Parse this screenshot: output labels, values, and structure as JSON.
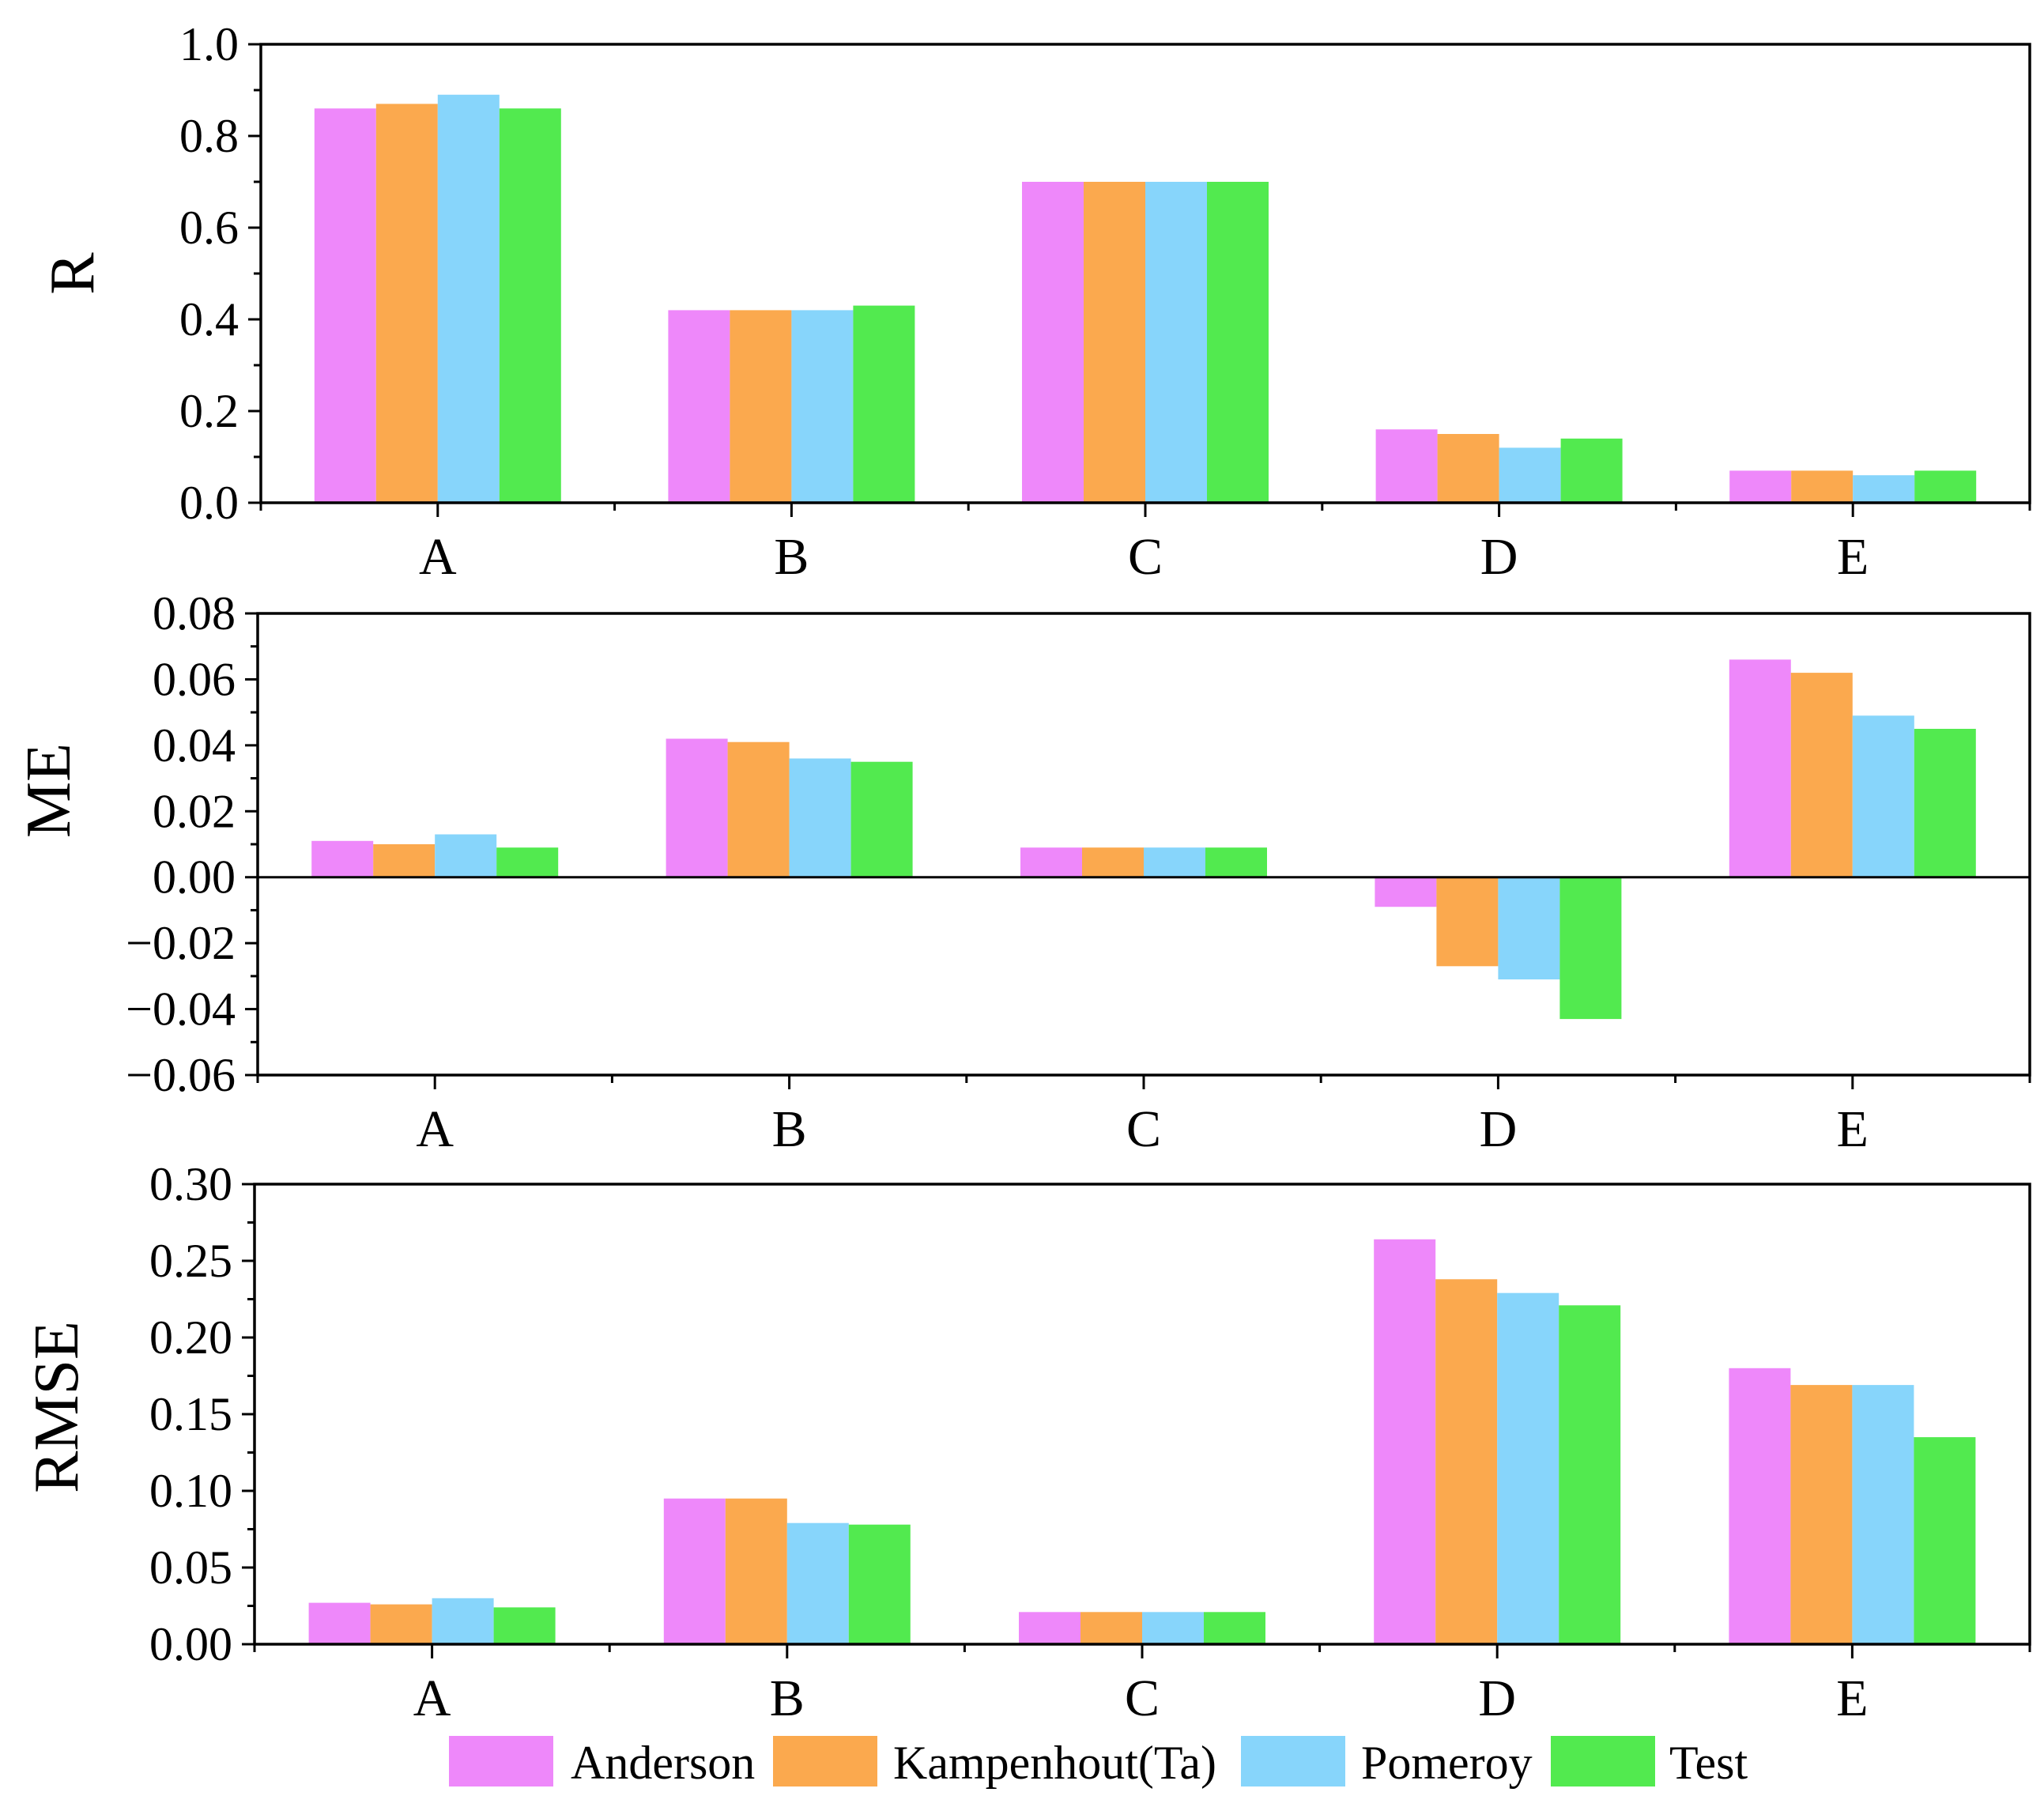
{
  "legend": [
    {
      "name": "Anderson",
      "color": "#EE88FA"
    },
    {
      "name": "Kampenhout(Ta)",
      "color": "#FBA94E"
    },
    {
      "name": "Pomeroy",
      "color": "#87D5FB"
    },
    {
      "name": "Test",
      "color": "#52EA4F"
    }
  ],
  "chart_data": [
    {
      "type": "bar",
      "ylabel": "R",
      "categories": [
        "A",
        "B",
        "C",
        "D",
        "E"
      ],
      "ylim": [
        0,
        1.0
      ],
      "yticks": [
        "0.0",
        "0.2",
        "0.4",
        "0.6",
        "0.8",
        "1.0"
      ],
      "series": [
        {
          "name": "Anderson",
          "values": [
            0.86,
            0.42,
            0.7,
            0.16,
            0.07
          ]
        },
        {
          "name": "Kampenhout(Ta)",
          "values": [
            0.87,
            0.42,
            0.7,
            0.15,
            0.07
          ]
        },
        {
          "name": "Pomeroy",
          "values": [
            0.89,
            0.42,
            0.7,
            0.12,
            0.06
          ]
        },
        {
          "name": "Test",
          "values": [
            0.86,
            0.43,
            0.7,
            0.14,
            0.07
          ]
        }
      ]
    },
    {
      "type": "bar",
      "ylabel": "ME",
      "categories": [
        "A",
        "B",
        "C",
        "D",
        "E"
      ],
      "ylim": [
        -0.06,
        0.08
      ],
      "yticks": [
        "−0.06",
        "−0.04",
        "−0.02",
        "0.00",
        "0.02",
        "0.04",
        "0.06",
        "0.08"
      ],
      "series": [
        {
          "name": "Anderson",
          "values": [
            0.011,
            0.042,
            0.009,
            -0.009,
            0.066
          ]
        },
        {
          "name": "Kampenhout(Ta)",
          "values": [
            0.01,
            0.041,
            0.009,
            -0.027,
            0.062
          ]
        },
        {
          "name": "Pomeroy",
          "values": [
            0.013,
            0.036,
            0.009,
            -0.031,
            0.049
          ]
        },
        {
          "name": "Test",
          "values": [
            0.009,
            0.035,
            0.009,
            -0.043,
            0.045
          ]
        }
      ]
    },
    {
      "type": "bar",
      "ylabel": "RMSE",
      "categories": [
        "A",
        "B",
        "C",
        "D",
        "E"
      ],
      "ylim": [
        0,
        0.3
      ],
      "yticks": [
        "0.00",
        "0.05",
        "0.10",
        "0.15",
        "0.20",
        "0.25",
        "0.30"
      ],
      "series": [
        {
          "name": "Anderson",
          "values": [
            0.027,
            0.095,
            0.021,
            0.264,
            0.18
          ]
        },
        {
          "name": "Kampenhout(Ta)",
          "values": [
            0.026,
            0.095,
            0.021,
            0.238,
            0.169
          ]
        },
        {
          "name": "Pomeroy",
          "values": [
            0.03,
            0.079,
            0.021,
            0.229,
            0.169
          ]
        },
        {
          "name": "Test",
          "values": [
            0.024,
            0.078,
            0.021,
            0.221,
            0.135
          ]
        }
      ]
    }
  ]
}
